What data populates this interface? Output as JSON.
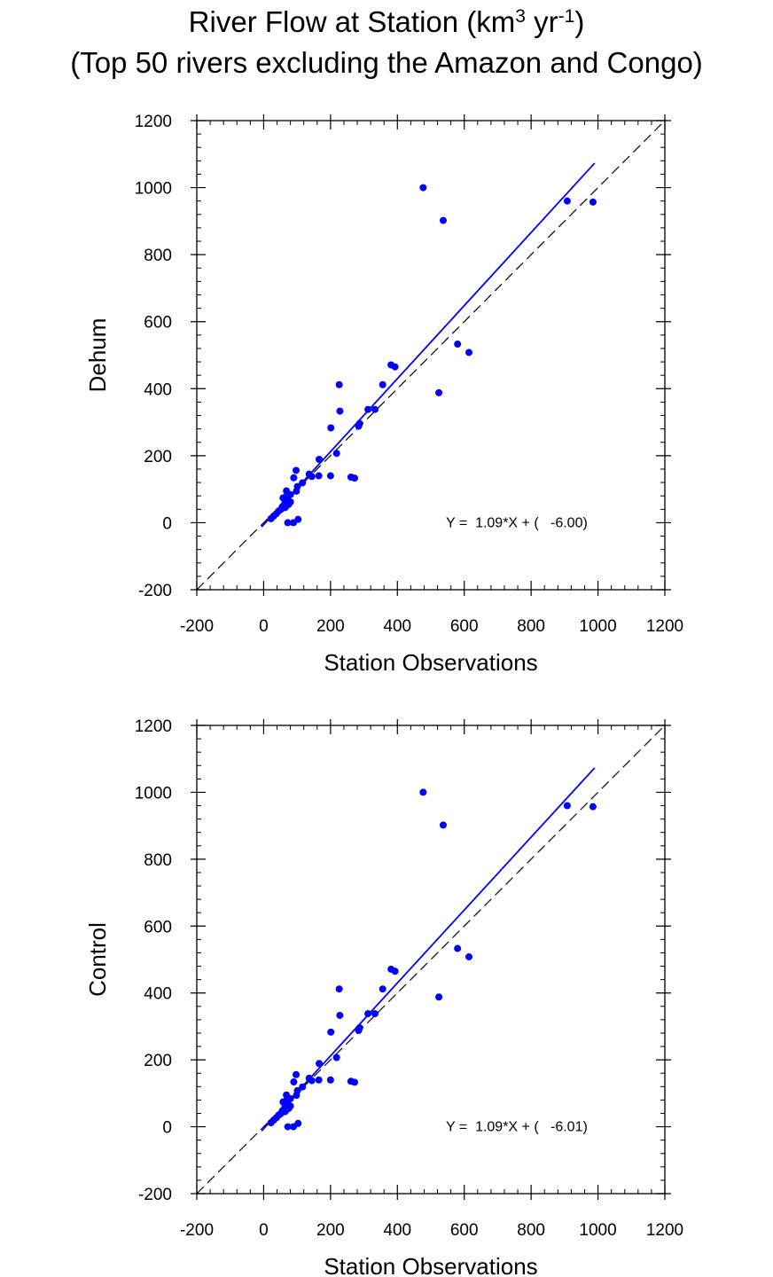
{
  "header": {
    "title_main": "River Flow at Station (km",
    "title_sup1": "3",
    "title_mid": " yr",
    "title_sup2": "-1",
    "title_end": ")",
    "subtitle": "(Top 50 rivers excluding the Amazon and Congo)"
  },
  "colors": {
    "points": "#0000ff",
    "fit_line": "#0000ff",
    "one_to_one": "#000000"
  },
  "chart_data": [
    {
      "type": "scatter",
      "name": "dehum",
      "xlabel": "Station Observations",
      "ylabel": "Dehum",
      "xlim": [
        -200,
        1200
      ],
      "ylim": [
        -200,
        1200
      ],
      "xticks": [
        -200,
        0,
        200,
        400,
        600,
        800,
        1000,
        1200
      ],
      "yticks": [
        -200,
        0,
        200,
        400,
        600,
        800,
        1000,
        1200
      ],
      "xtick_labels": [
        "-200",
        "0",
        "200",
        "400",
        "600",
        "800",
        "1000",
        "1200"
      ],
      "ytick_labels": [
        "-200",
        "0",
        "200",
        "400",
        "600",
        "800",
        "1000",
        "1200"
      ],
      "equation": "Y =  1.09*X + (   -6.00)",
      "fit": {
        "slope": 1.09,
        "intercept": -6.0,
        "x_range": [
          -6,
          990
        ]
      },
      "points": [
        [
          477,
          1000
        ],
        [
          537,
          902
        ],
        [
          908,
          960
        ],
        [
          985,
          957
        ],
        [
          580,
          533
        ],
        [
          614,
          508
        ],
        [
          524,
          388
        ],
        [
          381,
          471
        ],
        [
          393,
          465
        ],
        [
          356,
          412
        ],
        [
          226,
          412
        ],
        [
          312,
          338
        ],
        [
          333,
          338
        ],
        [
          228,
          333
        ],
        [
          287,
          296
        ],
        [
          284,
          288
        ],
        [
          201,
          283
        ],
        [
          218,
          207
        ],
        [
          166,
          189
        ],
        [
          97,
          156
        ],
        [
          90,
          134
        ],
        [
          136,
          145
        ],
        [
          144,
          138
        ],
        [
          165,
          140
        ],
        [
          200,
          140
        ],
        [
          261,
          136
        ],
        [
          272,
          133
        ],
        [
          116,
          119
        ],
        [
          101,
          108
        ],
        [
          98,
          94
        ],
        [
          80,
          84
        ],
        [
          68,
          95
        ],
        [
          66,
          77
        ],
        [
          58,
          74
        ],
        [
          72,
          68
        ],
        [
          80,
          62
        ],
        [
          63,
          58
        ],
        [
          70,
          52
        ],
        [
          56,
          48
        ],
        [
          52,
          40
        ],
        [
          45,
          35
        ],
        [
          38,
          27
        ],
        [
          22,
          12
        ],
        [
          30,
          20
        ],
        [
          72,
          0
        ],
        [
          89,
          0
        ],
        [
          103,
          10
        ],
        [
          75,
          55
        ],
        [
          64,
          45
        ],
        [
          70,
          70
        ]
      ]
    },
    {
      "type": "scatter",
      "name": "control",
      "xlabel": "Station Observations",
      "ylabel": "Control",
      "xlim": [
        -200,
        1200
      ],
      "ylim": [
        -200,
        1200
      ],
      "xticks": [
        -200,
        0,
        200,
        400,
        600,
        800,
        1000,
        1200
      ],
      "yticks": [
        -200,
        0,
        200,
        400,
        600,
        800,
        1000,
        1200
      ],
      "xtick_labels": [
        "-200",
        "0",
        "200",
        "400",
        "600",
        "800",
        "1000",
        "1200"
      ],
      "ytick_labels": [
        "-200",
        "0",
        "200",
        "400",
        "600",
        "800",
        "1000",
        "1200"
      ],
      "equation": "Y =  1.09*X + (   -6.01)",
      "fit": {
        "slope": 1.09,
        "intercept": -6.01,
        "x_range": [
          -6,
          990
        ]
      },
      "points": [
        [
          477,
          1000
        ],
        [
          537,
          902
        ],
        [
          908,
          960
        ],
        [
          985,
          957
        ],
        [
          580,
          533
        ],
        [
          614,
          508
        ],
        [
          524,
          388
        ],
        [
          381,
          471
        ],
        [
          393,
          465
        ],
        [
          356,
          412
        ],
        [
          226,
          412
        ],
        [
          312,
          338
        ],
        [
          333,
          338
        ],
        [
          228,
          333
        ],
        [
          287,
          296
        ],
        [
          284,
          288
        ],
        [
          201,
          283
        ],
        [
          218,
          207
        ],
        [
          166,
          189
        ],
        [
          97,
          156
        ],
        [
          90,
          134
        ],
        [
          136,
          145
        ],
        [
          144,
          138
        ],
        [
          165,
          140
        ],
        [
          200,
          140
        ],
        [
          261,
          136
        ],
        [
          272,
          133
        ],
        [
          116,
          119
        ],
        [
          101,
          108
        ],
        [
          98,
          94
        ],
        [
          80,
          84
        ],
        [
          68,
          95
        ],
        [
          66,
          77
        ],
        [
          58,
          74
        ],
        [
          72,
          68
        ],
        [
          80,
          62
        ],
        [
          63,
          58
        ],
        [
          70,
          52
        ],
        [
          56,
          48
        ],
        [
          52,
          40
        ],
        [
          45,
          35
        ],
        [
          38,
          27
        ],
        [
          22,
          12
        ],
        [
          30,
          20
        ],
        [
          72,
          0
        ],
        [
          89,
          0
        ],
        [
          103,
          10
        ],
        [
          75,
          55
        ],
        [
          64,
          45
        ],
        [
          70,
          70
        ]
      ]
    }
  ]
}
